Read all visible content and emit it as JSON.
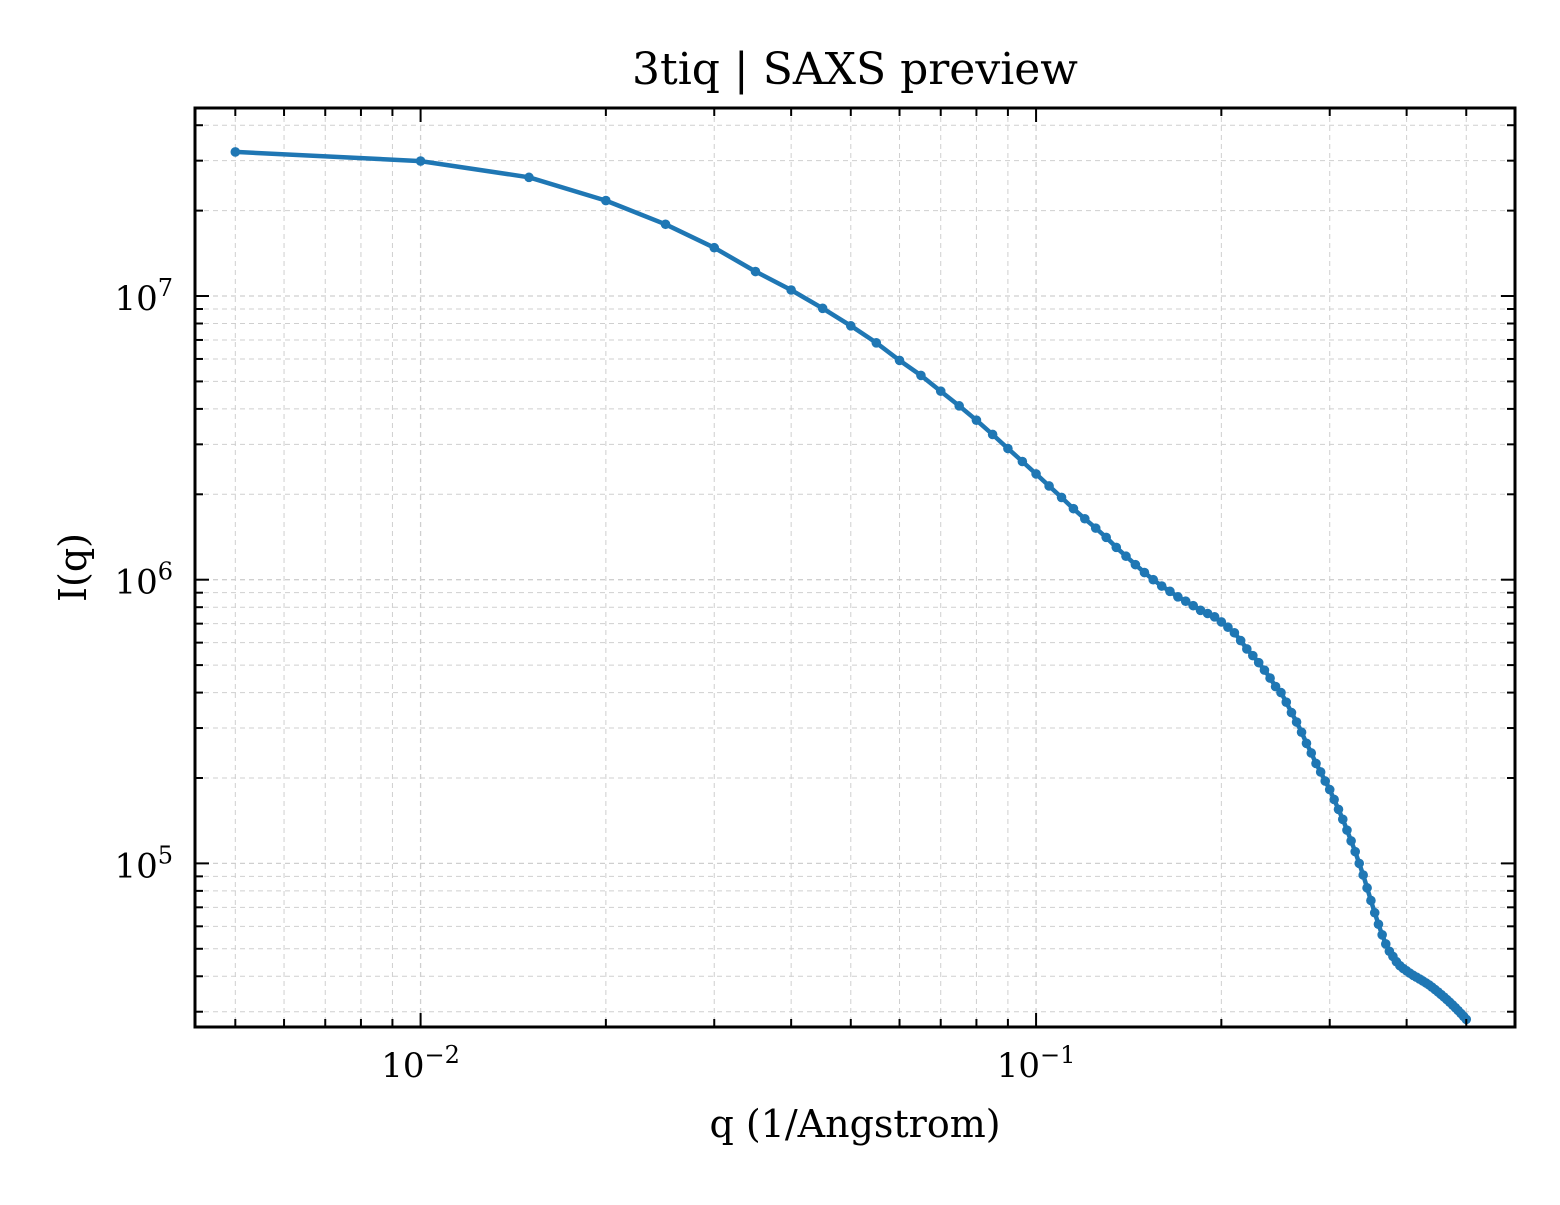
{
  "chart_data": {
    "type": "line",
    "title": "3tiq | SAXS preview",
    "xlabel": "q (1/Angstrom)",
    "ylabel": "I(q)",
    "xscale": "log",
    "yscale": "log",
    "xlim": [
      0.0043,
      0.6
    ],
    "ylim": [
      26500,
      46000000
    ],
    "grid": true,
    "legend": "none",
    "x_ticks": [
      {
        "value": 0.01,
        "base": "10",
        "exp": "−2"
      },
      {
        "value": 0.1,
        "base": "10",
        "exp": "−1"
      }
    ],
    "y_ticks": [
      {
        "value": 100000,
        "base": "10",
        "exp": "5"
      },
      {
        "value": 1000000,
        "base": "10",
        "exp": "6"
      },
      {
        "value": 10000000,
        "base": "10",
        "exp": "7"
      }
    ],
    "series": [
      {
        "color": "#1f77b4",
        "x": [
          0.005,
          0.01,
          0.015,
          0.02,
          0.025,
          0.03,
          0.035,
          0.04,
          0.045,
          0.05,
          0.055,
          0.06,
          0.065,
          0.07,
          0.075,
          0.08,
          0.085,
          0.09,
          0.095,
          0.1,
          0.105,
          0.11,
          0.115,
          0.12,
          0.125,
          0.13,
          0.135,
          0.14,
          0.145,
          0.15,
          0.155,
          0.16,
          0.165,
          0.17,
          0.175,
          0.18,
          0.185,
          0.19,
          0.195,
          0.2,
          0.205,
          0.21,
          0.215,
          0.22,
          0.225,
          0.23,
          0.235,
          0.24,
          0.245,
          0.25,
          0.255,
          0.26,
          0.265,
          0.27,
          0.275,
          0.28,
          0.285,
          0.29,
          0.295,
          0.3,
          0.305,
          0.31,
          0.315,
          0.32,
          0.325,
          0.33,
          0.335,
          0.34,
          0.345,
          0.35,
          0.355,
          0.36,
          0.365,
          0.37,
          0.375,
          0.38,
          0.385,
          0.39,
          0.395,
          0.4,
          0.405,
          0.41,
          0.415,
          0.42,
          0.425,
          0.43,
          0.435,
          0.44,
          0.445,
          0.45,
          0.455,
          0.46,
          0.465,
          0.47,
          0.475,
          0.48,
          0.485,
          0.49,
          0.495,
          0.5
        ],
        "y": [
          32200000,
          29900000,
          26200000,
          21700000,
          17900000,
          14800000,
          12200000,
          10500000,
          9050000,
          7850000,
          6840000,
          5930000,
          5250000,
          4620000,
          4100000,
          3650000,
          3250000,
          2900000,
          2610000,
          2360000,
          2140000,
          1950000,
          1780000,
          1640000,
          1520000,
          1410000,
          1300000,
          1210000,
          1130000,
          1060000,
          1000000,
          950000,
          910000,
          870000,
          840000,
          810000,
          780000,
          760000,
          740000,
          710000,
          680000,
          650000,
          610000,
          570000,
          540000,
          510000,
          480000,
          450000,
          420000,
          400000,
          370000,
          340000,
          315000,
          290000,
          265000,
          245000,
          225000,
          210000,
          195000,
          182000,
          168000,
          155000,
          143000,
          131000,
          120000,
          110000,
          100000,
          91000,
          82000,
          74000,
          67000,
          61000,
          56000,
          52000,
          49000,
          47000,
          45000,
          43600,
          42600,
          41800,
          41000,
          40300,
          39700,
          39100,
          38500,
          37900,
          37300,
          36600,
          35900,
          35200,
          34500,
          33800,
          33100,
          32400,
          31700,
          31000,
          30300,
          29600,
          28900,
          28200
        ],
        "y_shown": "dense markers from q=0.1 onward at 0.005 spacing"
      }
    ]
  }
}
